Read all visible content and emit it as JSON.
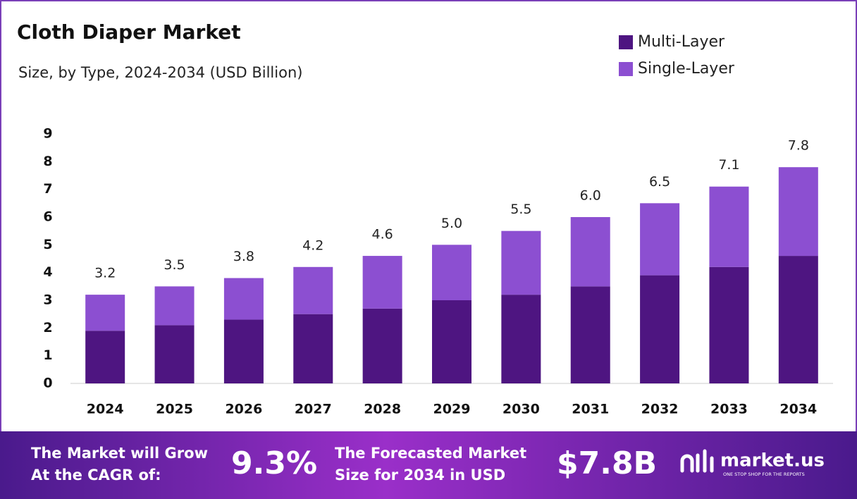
{
  "chart_data": {
    "type": "stacked-bar",
    "title": "Cloth Diaper Market",
    "subtitle": "Size, by Type, 2024-2034 (USD Billion)",
    "categories": [
      "2024",
      "2025",
      "2026",
      "2027",
      "2028",
      "2029",
      "2030",
      "2031",
      "2032",
      "2033",
      "2034"
    ],
    "series": [
      {
        "name": "Multi-Layer",
        "color": "#4e1581",
        "values": [
          1.9,
          2.1,
          2.3,
          2.5,
          2.7,
          3.0,
          3.2,
          3.5,
          3.9,
          4.2,
          4.6
        ]
      },
      {
        "name": "Single-Layer",
        "color": "#8c4fd1",
        "values": [
          1.3,
          1.4,
          1.5,
          1.7,
          1.9,
          2.0,
          2.3,
          2.5,
          2.6,
          2.9,
          3.2
        ]
      }
    ],
    "totals": {
      "values": [
        3.2,
        3.5,
        3.8,
        4.2,
        4.6,
        5,
        5.5,
        6,
        6.5,
        7.1,
        7.8
      ],
      "value_labels": [
        "3.2",
        "3.5",
        "3.8",
        "4.2",
        "4.6",
        "5.0",
        "5.5",
        "6.0",
        "6.5",
        "7.1",
        "7.8"
      ]
    },
    "ylim": [
      0,
      9
    ],
    "yticks": [
      0,
      1,
      2,
      3,
      4,
      5,
      6,
      7,
      8,
      9
    ],
    "grid": false,
    "legend": "top-right"
  },
  "footer": {
    "cagr_text": [
      "The Market will Grow",
      "At the CAGR of:"
    ],
    "cagr": "9.3%",
    "size_text": [
      "The Forecasted Market",
      "Size for 2034 in USD"
    ],
    "size": "$7.8B",
    "brand": "market.us",
    "tagline": "ONE STOP SHOP FOR THE REPORTS"
  }
}
